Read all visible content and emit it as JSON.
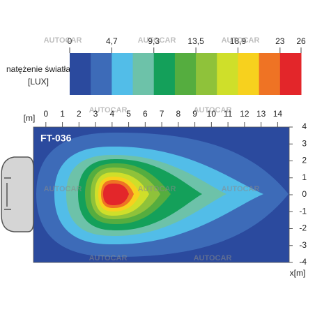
{
  "colorbar": {
    "label": [
      "natężenie światła",
      "[LUX]"
    ],
    "ticks": [
      0,
      {
        "value": 4.7,
        "label": "4,7"
      },
      {
        "value": 9.3,
        "label": "9,3"
      },
      {
        "value": 13.5,
        "label": "13,5"
      },
      {
        "value": 18.9,
        "label": "18,9"
      },
      23,
      26
    ],
    "colors": [
      "#2b4a9e",
      "#3d6bb8",
      "#52bde8",
      "#6dc2a9",
      "#14a05a",
      "#55ad3f",
      "#8fc23a",
      "#cfdf2a",
      "#f7d11e",
      "#ef7324",
      "#e3262a"
    ]
  },
  "chart_data": {
    "type": "contour",
    "title": "FT-036",
    "x_unit": "[m]",
    "x_label": "x[m]",
    "xlim": [
      -0.75,
      14.7
    ],
    "xticks": [
      0,
      1,
      2,
      3,
      4,
      5,
      6,
      7,
      8,
      9,
      10,
      11,
      12,
      13,
      14
    ],
    "ylim": [
      -4,
      4
    ],
    "yticks": [
      4,
      3,
      2,
      1,
      0,
      -1,
      -2,
      -3,
      -4
    ]
  },
  "watermark": "AUTOCAR"
}
